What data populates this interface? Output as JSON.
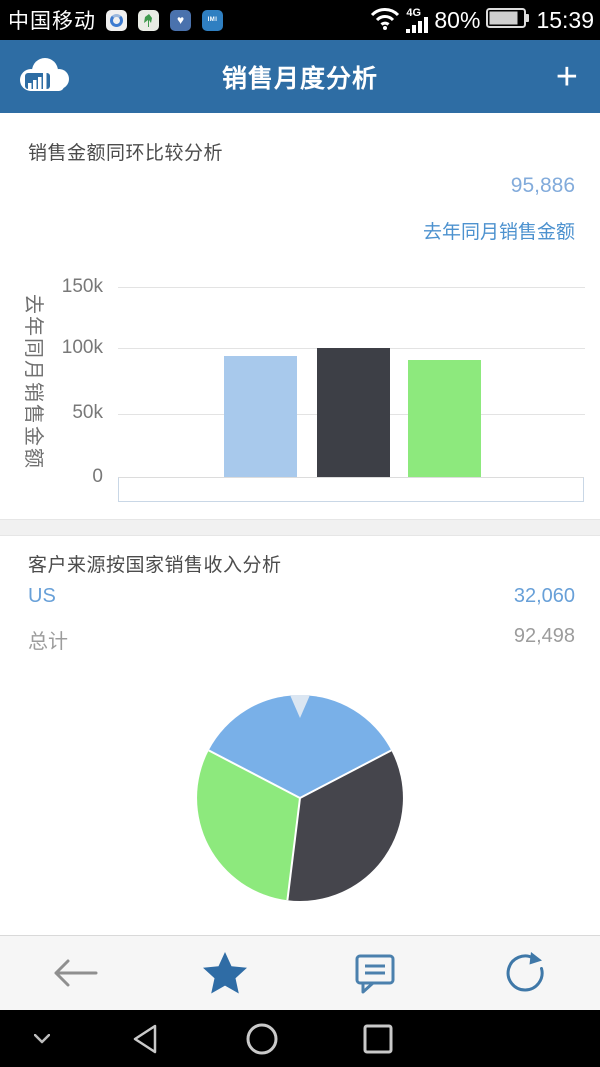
{
  "status_bar": {
    "carrier": "中国移动",
    "network_label": "4G",
    "battery_percent": "80%",
    "time": "15:39",
    "app_icon_4_text": "IMI",
    "icons": [
      "swirl-app-icon",
      "plant-app-icon",
      "health-app-icon",
      "imi-app-icon",
      "wifi-icon",
      "signal-bars-icon",
      "battery-icon"
    ]
  },
  "header": {
    "title": "销售月度分析",
    "logo": "cloud-analytics-logo",
    "add_button_label": "+"
  },
  "section1": {
    "title": "销售金额同环比较分析",
    "metric_value": "95,886",
    "metric_link": "去年同月销售金额"
  },
  "section2": {
    "title": "客户来源按国家销售收入分析",
    "rows": [
      {
        "label": "US",
        "value": "32,060"
      },
      {
        "label": "总计",
        "value": "92,498"
      }
    ]
  },
  "chart_data": [
    {
      "type": "bar",
      "title": "销售金额同环比较分析",
      "ylabel": "去年同月销售金额",
      "xlabel": "",
      "categories": [
        "",
        "",
        ""
      ],
      "values": [
        95886,
        102000,
        92000
      ],
      "bar_colors": [
        "#a8c9ec",
        "#3d3f46",
        "#8de97d"
      ],
      "ylim": [
        0,
        150000
      ],
      "yticks": [
        "150k",
        "100k",
        "50k",
        "0"
      ],
      "grid": true,
      "legend_position": "none"
    },
    {
      "type": "pie",
      "title": "客户来源按国家销售收入分析",
      "total": 92498,
      "slices": [
        {
          "label": "US",
          "value": 32060,
          "pct": 34.7,
          "color": "#79b0e8"
        },
        {
          "label": "",
          "value": 32000,
          "pct": 34.6,
          "color": "#45454c"
        },
        {
          "label": "",
          "value": 28438,
          "pct": 30.7,
          "color": "#8de97d"
        }
      ],
      "notch_color": "#dbe6f2",
      "legend_position": "none"
    }
  ],
  "toolbar": {
    "icons": [
      {
        "name": "back-arrow-icon",
        "color": "#8f8f8f",
        "active": false
      },
      {
        "name": "star-icon",
        "color": "#2f6ca5",
        "active": true
      },
      {
        "name": "comment-icon",
        "color": "#4b80ad",
        "active": false
      },
      {
        "name": "refresh-icon",
        "color": "#3f78a8",
        "active": false
      }
    ]
  },
  "nav_bar": {
    "icons": [
      "hide-chevron-icon",
      "back-triangle-icon",
      "home-circle-icon",
      "recents-square-icon"
    ]
  },
  "colors": {
    "header_bg": "#2e6da4",
    "link_blue": "#4d92cf",
    "value_blue": "#82abdb",
    "text_dark": "#4c4c4c",
    "text_gray": "#9c9c9c",
    "axis_gray": "#787878"
  }
}
